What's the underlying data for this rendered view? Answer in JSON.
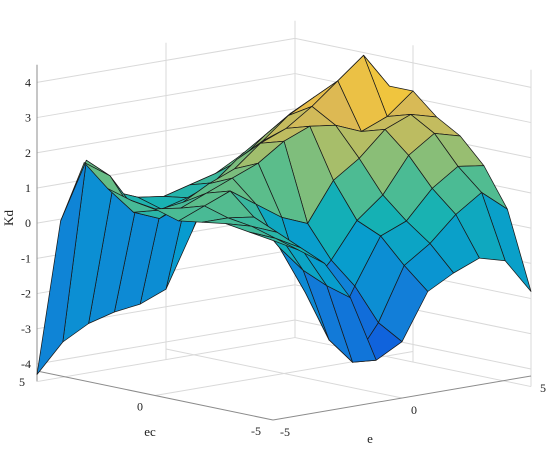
{
  "chart_data": {
    "type": "surface",
    "title": "",
    "xlabel": "e",
    "ylabel": "ec",
    "zlabel": "Kd",
    "xlim": [
      -5,
      5
    ],
    "ylim": [
      -5,
      5
    ],
    "zlim": [
      -4.5,
      4.5
    ],
    "x_ticks": [
      "-5",
      "0",
      "5"
    ],
    "y_ticks": [
      "-5",
      "0",
      "5"
    ],
    "z_ticks": [
      "-4",
      "-3",
      "-2",
      "-1",
      "0",
      "1",
      "2",
      "3",
      "4"
    ],
    "grid": true,
    "colormap": "parula",
    "x": [
      -5,
      -4,
      -3,
      -2,
      -1,
      0,
      1,
      2,
      3,
      4,
      5
    ],
    "y": [
      -5,
      -4,
      -3,
      -2,
      -1,
      0,
      1,
      2,
      3,
      4,
      5
    ],
    "z_rows_by_ec_from_plus5_to_minus5": [
      [
        -4.3,
        -3.5,
        -3.1,
        -2.9,
        -2.8,
        -2.5,
        -1.0,
        0.5,
        1.0,
        0.6,
        1.9
      ],
      [
        0.2,
        1.8,
        0.8,
        0.5,
        0.4,
        0.6,
        0.8,
        1.2,
        1.5,
        1.6,
        1.6
      ],
      [
        2.0,
        1.5,
        0.4,
        0.3,
        0.5,
        0.8,
        1.3,
        1.9,
        2.4,
        2.6,
        2.8
      ],
      [
        1.4,
        0.6,
        0.3,
        0.6,
        1.0,
        1.6,
        2.0,
        2.6,
        3.0,
        3.2,
        3.3
      ],
      [
        1.2,
        0.8,
        0.9,
        1.3,
        1.6,
        2.2,
        2.5,
        3.0,
        3.6,
        4.2,
        3.2
      ],
      [
        1.1,
        1.0,
        1.3,
        1.6,
        1.9,
        2.4,
        2.7,
        2.6,
        2.3,
        2.6,
        3.2
      ],
      [
        0.9,
        1.2,
        1.5,
        1.0,
        0.5,
        0.2,
        1.3,
        1.8,
        2.5,
        2.8,
        2.6
      ],
      [
        1.0,
        1.0,
        0.9,
        -0.1,
        -1.5,
        -0.7,
        0.3,
        0.9,
        1.9,
        2.4,
        2.2
      ],
      [
        1.1,
        0.9,
        0.6,
        -0.6,
        -2.7,
        -1.3,
        0.0,
        0.3,
        1.1,
        1.6,
        1.5
      ],
      [
        1.0,
        0.7,
        0.3,
        -0.9,
        -3.2,
        -2.2,
        -0.7,
        -0.2,
        0.5,
        1.0,
        0.4
      ],
      [
        0.9,
        0.5,
        0.0,
        -1.1,
        -3.0,
        -2.6,
        -1.3,
        -0.9,
        -0.6,
        -0.8,
        -1.8
      ]
    ]
  }
}
